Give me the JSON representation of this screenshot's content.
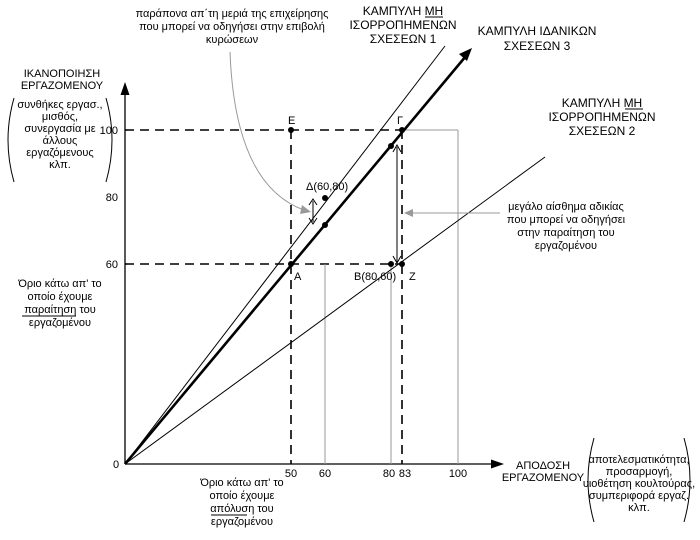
{
  "y_axis": {
    "title": [
      "ΙΚΑΝΟΠΟΙΗΣΗ",
      "ΕΡΓΑΖΟΜΕΝΟΥ"
    ],
    "note": [
      "συνθήκες εργασ.,",
      "μισθός,",
      "συνεργασία με",
      "άλλους",
      "εργαζόμενους",
      "κλπ."
    ],
    "ticks": [
      "100",
      "80",
      "60"
    ]
  },
  "x_axis": {
    "title": [
      "ΑΠΟΔΟΣΗ",
      "ΕΡΓΑΖΟΜΕΝΟΥ"
    ],
    "note": [
      "αποτελεσματικότητα,",
      "προσαρμογή,",
      "υιοθέτηση κουλτούρας,",
      "συμπεριφορά εργαζ.",
      "κλπ."
    ],
    "ticks": [
      "50",
      "60",
      "80",
      "83",
      "100"
    ]
  },
  "origin_label": "0",
  "curves": {
    "curve1": [
      "ΚΑΜΠΥΛΗ ΜΗ",
      "ΙΣΟΡΡΟΠΗΜΕΝΩΝ",
      "ΣΧΕΣΕΩΝ 1"
    ],
    "curve3": [
      "ΚΑΜΠΥΛΗ ΙΔΑΝΙΚΩΝ",
      "ΣΧΕΣΕΩΝ 3"
    ],
    "curve2": [
      "ΚΑΜΠΥΛΗ ΜΗ",
      "ΙΣΟΡΡΟΠΗΜΕΝΩΝ",
      "ΣΧΕΣΕΩΝ 2"
    ]
  },
  "annotations": {
    "complaints": [
      "παράπονα απ΄τη μεριά της επιχείρησης",
      "που μπορεί να οδηγήσει στην επιβολή",
      "κυρώσεων"
    ],
    "injustice": [
      "μεγάλο αίσθημα αδικίας",
      "που μπορεί να οδηγήσει",
      "στην παραίτηση του",
      "εργαζομένου"
    ],
    "resignation": [
      "Όριο κάτω απ' το",
      "οποίο έχουμε",
      "παραίτηση του",
      "εργαζομένου"
    ],
    "dismissal": [
      "Όριο κάτω απ' το",
      "οποίο έχουμε",
      "απόλυση του",
      "εργαζομένου"
    ]
  },
  "points": {
    "E": "Ε",
    "G": "Γ",
    "D": "Δ(60,80)",
    "A": "Α",
    "B": "Β(80,60)",
    "Z": "Ζ"
  }
}
